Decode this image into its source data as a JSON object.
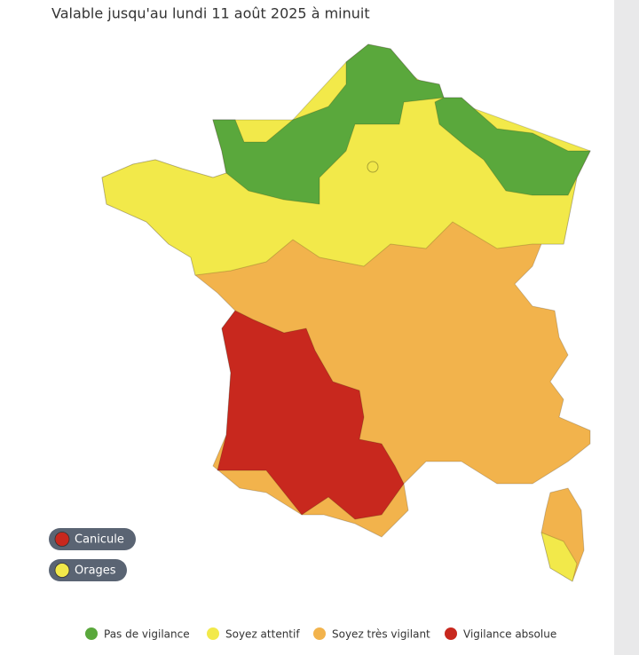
{
  "header": {
    "title": "Valable jusqu'au lundi 11 août 2025 à minuit"
  },
  "overlay_legend": [
    {
      "label": "Canicule",
      "color": "#c8281e"
    },
    {
      "label": "Orages",
      "color": "#f2e94a"
    }
  ],
  "legend": [
    {
      "label": "Pas de vigilance",
      "color": "#5aa83c"
    },
    {
      "label": "Soyez attentif",
      "color": "#f2e94a"
    },
    {
      "label": "Soyez très vigilant",
      "color": "#f2b34c"
    },
    {
      "label": "Vigilance absolue",
      "color": "#c8281e"
    }
  ]
}
